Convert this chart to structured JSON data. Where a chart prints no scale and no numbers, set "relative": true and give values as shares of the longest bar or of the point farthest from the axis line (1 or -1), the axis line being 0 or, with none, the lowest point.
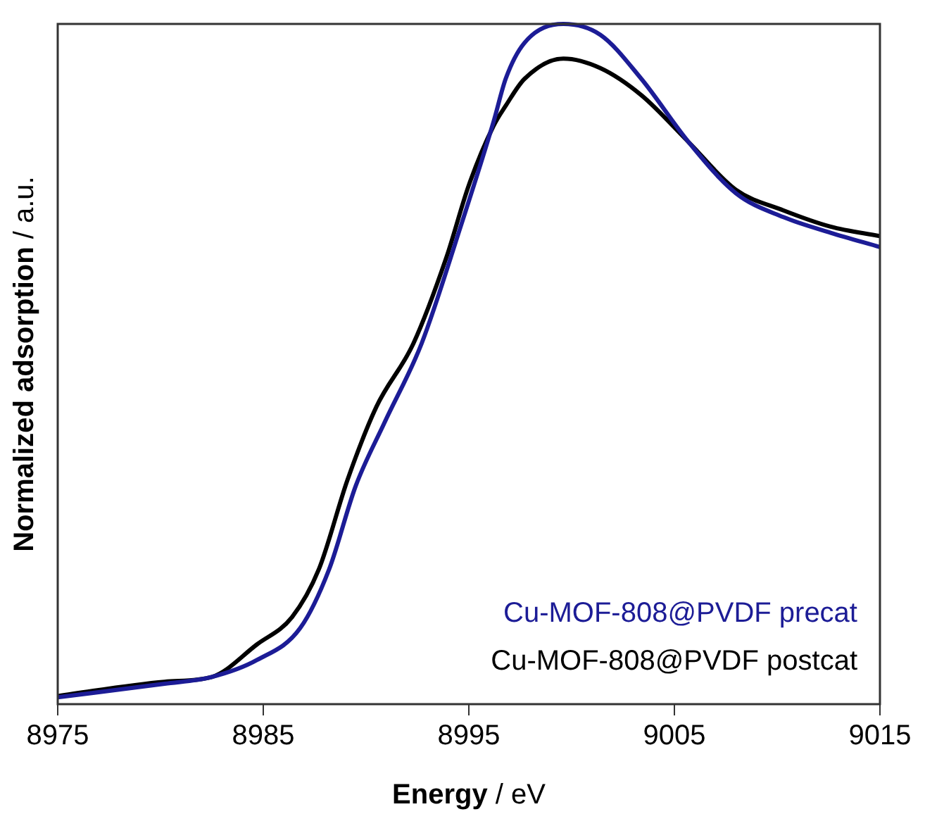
{
  "chart_data": {
    "type": "line",
    "xlabel": "Energy / eV",
    "ylabel": "Normalized adsorption / a.u.",
    "relative": true,
    "xlim": [
      8975,
      9015
    ],
    "xticks": [
      8975,
      8985,
      8995,
      9005,
      9015
    ],
    "legend": "bottom right",
    "grid": false,
    "marker": "none",
    "line_style": "solid",
    "series": [
      {
        "name": "Cu-MOF-808@PVDF precat",
        "color": "#1c1c96",
        "x": [
          8975,
          8980.2,
          8982.5,
          8984.7,
          8986.8,
          8988.2,
          8989.5,
          8990.9,
          8992.7,
          8994.6,
          8996.2,
          8996.8,
          8997.7,
          8999.6,
          9001.4,
          9003.4,
          9005.7,
          9008.0,
          9010.3,
          9012.6,
          9015
        ],
        "values": [
          0.01,
          0.03,
          0.04,
          0.065,
          0.112,
          0.198,
          0.321,
          0.414,
          0.53,
          0.702,
          0.856,
          0.92,
          0.972,
          1,
          0.984,
          0.919,
          0.826,
          0.751,
          0.716,
          0.693,
          0.672
        ]
      },
      {
        "name": "Cu-MOF-808@PVDF postcat",
        "color": "#000000",
        "x": [
          8975,
          8980.2,
          8982.5,
          8984.7,
          8986.4,
          8987.7,
          8989.1,
          8990.5,
          8992.3,
          8993.9,
          8995.0,
          8996.2,
          8996.8,
          8997.7,
          8999.6,
          9001.4,
          9003.4,
          9005.7,
          9008.0,
          9010.3,
          9012.6,
          9015
        ],
        "values": [
          0.012,
          0.033,
          0.04,
          0.088,
          0.128,
          0.198,
          0.33,
          0.437,
          0.53,
          0.656,
          0.763,
          0.85,
          0.88,
          0.919,
          0.949,
          0.935,
          0.895,
          0.826,
          0.756,
          0.726,
          0.702,
          0.688
        ]
      }
    ]
  }
}
